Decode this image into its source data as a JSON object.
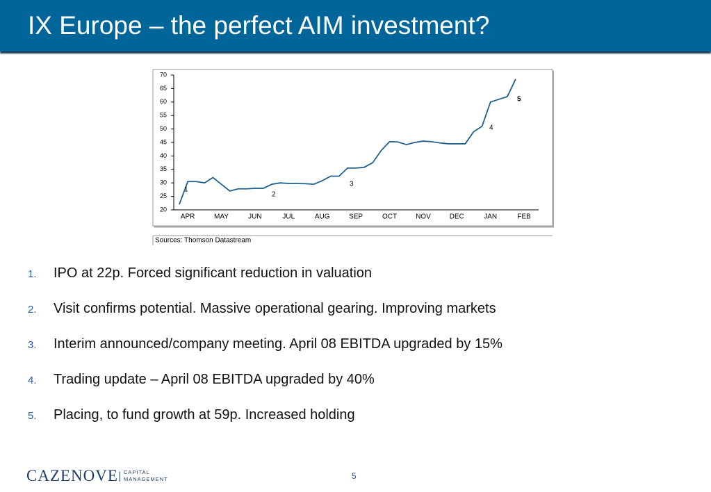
{
  "header": {
    "title": "IX Europe – the perfect AIM investment?"
  },
  "chart_data": {
    "type": "line",
    "categories": [
      null,
      "APR",
      null,
      null,
      null,
      "MAY",
      null,
      null,
      null,
      "JUN",
      null,
      null,
      null,
      "JUL",
      null,
      null,
      null,
      "AUG",
      null,
      null,
      null,
      "SEP",
      null,
      null,
      null,
      "OCT",
      null,
      null,
      null,
      "NOV",
      null,
      null,
      null,
      "DEC",
      null,
      null,
      null,
      "JAN",
      null,
      null,
      null,
      "FEB"
    ],
    "series": [
      {
        "color": "#1f5f8b",
        "values": [
          22,
          30.5,
          30.5,
          30,
          32,
          29.5,
          27,
          27.8,
          27.8,
          28,
          28,
          29.5,
          30,
          29.8,
          29.8,
          29.7,
          29.5,
          30.8,
          32.5,
          32.5,
          35.5,
          35.5,
          35.8,
          37.5,
          42,
          45.3,
          45.2,
          44.2,
          45,
          45.5,
          45.3,
          44.8,
          44.5,
          44.5,
          44.5,
          49,
          51,
          60,
          61,
          62,
          68.5,
          null
        ]
      }
    ],
    "ylim": [
      20,
      70
    ],
    "yticks": [
      20,
      25,
      30,
      35,
      40,
      45,
      50,
      55,
      60,
      65,
      70
    ],
    "annotations": [
      "1",
      "2",
      "3",
      "4",
      "5"
    ],
    "source": "Sources:  Thomson Datastream"
  },
  "list": [
    {
      "number": "1.",
      "text": "IPO at 22p.  Forced significant reduction in valuation"
    },
    {
      "number": "2.",
      "text": "Visit confirms potential.  Massive operational gearing.  Improving markets"
    },
    {
      "number": "3.",
      "text": "Interim announced/company meeting.  April 08 EBITDA upgraded by 15%"
    },
    {
      "number": "4.",
      "text": "Trading update – April 08 EBITDA upgraded by 40%"
    },
    {
      "number": "5.",
      "text": "Placing, to fund growth at 59p. Increased holding"
    }
  ],
  "footer": {
    "logo": "CAZENOVE",
    "logo_line1": "CAPITAL",
    "logo_line2": "MANAGEMENT",
    "page": "5"
  }
}
